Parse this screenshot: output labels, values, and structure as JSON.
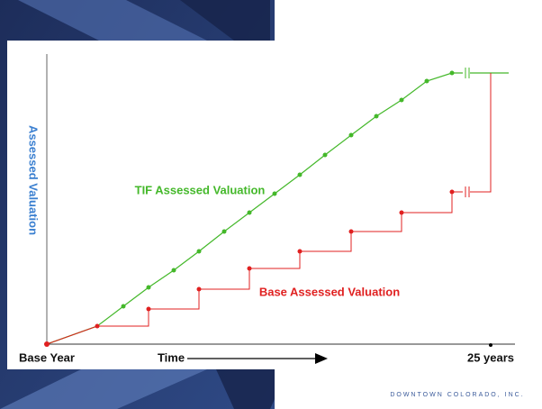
{
  "diagram": {
    "y_axis_label": "Assessed Valuation",
    "tif_label": "TIF Assessed Valuation",
    "base_label": "Base Assessed Valuation",
    "x_start_label": "Base Year",
    "x_time_label": "Time",
    "x_end_label": "25 years"
  },
  "footer": {
    "company": "DOWNTOWN COLORADO, INC."
  }
}
